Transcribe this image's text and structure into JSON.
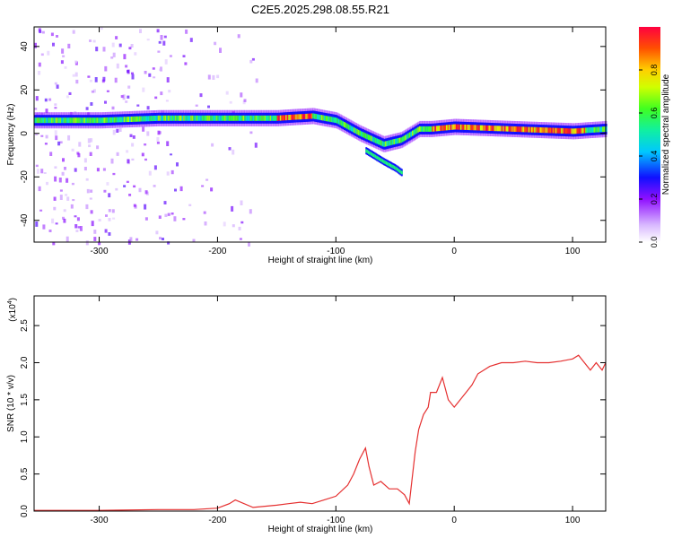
{
  "figure_title": "C2E5.2025.298.08.55.R21",
  "colors": {
    "snr_line": "#e53030",
    "spectrum_low": "#c8a8ff",
    "spectrum_mid": "#0000ff",
    "spectrum_high": "#ff0040"
  },
  "chart_data": [
    {
      "type": "heatmap",
      "title": "C2E5.2025.298.08.55.R21",
      "xlabel": "Height of straight line (km)",
      "ylabel": "Frequency (Hz)",
      "xlim": [
        -355,
        128
      ],
      "ylim": [
        -50,
        49
      ],
      "x_ticks": [
        "-300",
        "-200",
        "-100",
        "0",
        "100"
      ],
      "y_ticks": [
        "-40",
        "-20",
        "0",
        "20",
        "40"
      ],
      "colorbar": {
        "label": "Normalized spectral amplitude",
        "range": [
          0,
          1
        ],
        "ticks": [
          "0.0",
          "0.2",
          "0.4",
          "0.6",
          "0.8"
        ]
      },
      "ridge": {
        "x": [
          -355,
          -300,
          -250,
          -200,
          -150,
          -120,
          -100,
          -80,
          -60,
          -45,
          -30,
          -20,
          0,
          50,
          100,
          128
        ],
        "y": [
          6,
          6,
          7,
          7,
          7,
          8,
          6,
          0,
          -5,
          -3,
          2,
          2,
          3,
          2,
          1,
          2
        ]
      },
      "branch": {
        "x": [
          -75,
          -60,
          -50,
          -45
        ],
        "y": [
          -8,
          -13,
          -16,
          -18
        ]
      },
      "grid": false
    },
    {
      "type": "line",
      "xlabel": "Height of straight line (km)",
      "ylabel": "SNR (10 * v/v)",
      "y_exponent_label": "(x10",
      "y_exponent": "4",
      "xlim": [
        -355,
        128
      ],
      "ylim": [
        0,
        2.9
      ],
      "x_ticks": [
        "-300",
        "-200",
        "-100",
        "0",
        "100"
      ],
      "y_ticks": [
        "0.0",
        "0.5",
        "1.0",
        "1.5",
        "2.0",
        "2.5"
      ],
      "series": [
        {
          "x": [
            -355,
            -300,
            -250,
            -220,
            -200,
            -190,
            -185,
            -170,
            -150,
            -140,
            -130,
            -120,
            -110,
            -100,
            -90,
            -85,
            -80,
            -75,
            -72,
            -68,
            -62,
            -55,
            -48,
            -42,
            -38,
            -33,
            -30,
            -26,
            -22,
            -20,
            -15,
            -10,
            -5,
            0,
            5,
            10,
            15,
            20,
            25,
            30,
            40,
            50,
            60,
            70,
            80,
            90,
            100,
            105,
            110,
            115,
            120,
            125,
            128
          ],
          "values": [
            0.01,
            0.01,
            0.02,
            0.02,
            0.04,
            0.1,
            0.15,
            0.05,
            0.08,
            0.1,
            0.12,
            0.1,
            0.15,
            0.2,
            0.35,
            0.5,
            0.7,
            0.85,
            0.6,
            0.35,
            0.4,
            0.3,
            0.3,
            0.22,
            0.1,
            0.8,
            1.1,
            1.3,
            1.4,
            1.6,
            1.6,
            1.8,
            1.5,
            1.4,
            1.5,
            1.6,
            1.7,
            1.85,
            1.9,
            1.95,
            2.0,
            2.0,
            2.02,
            2.0,
            2.0,
            2.02,
            2.05,
            2.1,
            2.0,
            1.9,
            2.0,
            1.9,
            2.0
          ]
        }
      ],
      "grid": false
    }
  ]
}
